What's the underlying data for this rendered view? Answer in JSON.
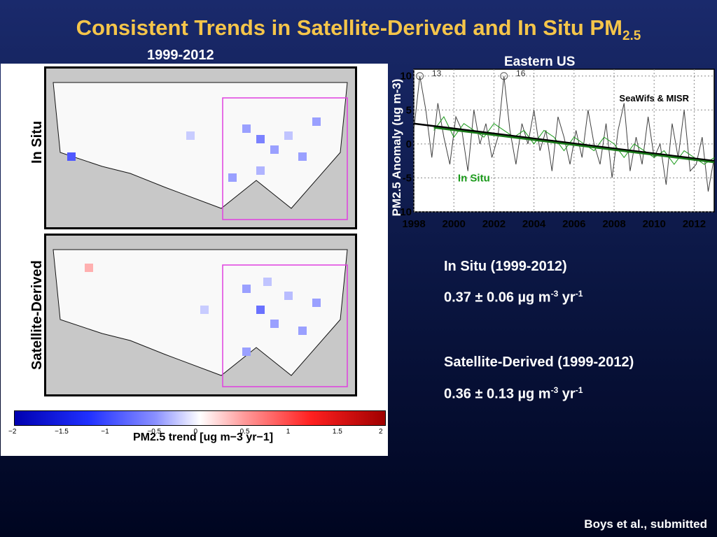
{
  "slide": {
    "title_main": "Consistent Trends in Satellite-Derived and In Situ PM",
    "title_sub": "2.5",
    "period_label": "1999-2012",
    "map_top_label": "In Situ",
    "map_bottom_label": "Satellite-Derived",
    "colorbar_ticks": [
      "−2",
      "−1.5",
      "−1",
      "−0.5",
      "0",
      "0.5",
      "1",
      "1.5",
      "2"
    ],
    "colorbar_label": "PM2.5 trend [ug m−3 yr−1]",
    "citation": "Boys et al., submitted"
  },
  "stats": {
    "in_situ_title": "In Situ (1999-2012)",
    "in_situ_value": "0.37 ± 0.06 µg m",
    "sat_title": "Satellite-Derived (1999-2012)",
    "sat_value": "0.36 ± 0.13 µg m",
    "unit_exp1": "-3",
    "unit_yr": " yr",
    "unit_exp2": "-1"
  },
  "chart_data": {
    "type": "line",
    "title": "Eastern US",
    "ylabel": "PM2.5 Anomaly (ug m-3)",
    "xlim": [
      1998,
      2013
    ],
    "ylim": [
      -10,
      11
    ],
    "x_ticks": [
      1998,
      2000,
      2002,
      2004,
      2006,
      2008,
      2010,
      2012
    ],
    "y_ticks": [
      10,
      5,
      0,
      -5,
      -10
    ],
    "grid": true,
    "annotations": [
      {
        "text": "13",
        "x": 1998.3,
        "y": 10
      },
      {
        "text": "16",
        "x": 2002.5,
        "y": 10
      }
    ],
    "series": [
      {
        "name": "SeaWifs & MISR",
        "color": "#404040",
        "x": [
          1998.0,
          1998.3,
          1998.6,
          1998.9,
          1999.2,
          1999.5,
          1999.8,
          2000.1,
          2000.4,
          2000.7,
          2001.0,
          2001.3,
          2001.6,
          2001.9,
          2002.2,
          2002.5,
          2002.8,
          2003.1,
          2003.4,
          2003.7,
          2004.0,
          2004.3,
          2004.6,
          2004.9,
          2005.2,
          2005.5,
          2005.8,
          2006.1,
          2006.4,
          2006.7,
          2007.0,
          2007.3,
          2007.6,
          2007.9,
          2008.2,
          2008.5,
          2008.8,
          2009.1,
          2009.4,
          2009.7,
          2010.0,
          2010.3,
          2010.6,
          2010.9,
          2011.2,
          2011.5,
          2011.8,
          2012.1,
          2012.4,
          2012.7,
          2013.0
        ],
        "y": [
          2,
          10,
          5,
          -2,
          6,
          1,
          -3,
          4,
          2,
          -4,
          5,
          0,
          3,
          -2,
          1,
          10,
          2,
          -3,
          3,
          0,
          5,
          -1,
          2,
          -4,
          4,
          1,
          -3,
          2,
          -2,
          5,
          0,
          -3,
          3,
          -5,
          2,
          6,
          -4,
          1,
          -3,
          4,
          -2,
          0,
          -6,
          3,
          -2,
          5,
          -4,
          -3,
          1,
          -7,
          -2
        ]
      },
      {
        "name": "In Situ",
        "color": "#1a9a1a",
        "x": [
          1999.0,
          1999.5,
          2000.0,
          2000.5,
          2001.0,
          2001.5,
          2002.0,
          2002.5,
          2003.0,
          2003.5,
          2004.0,
          2004.5,
          2005.0,
          2005.5,
          2006.0,
          2006.5,
          2007.0,
          2007.5,
          2008.0,
          2008.5,
          2009.0,
          2009.5,
          2010.0,
          2010.5,
          2011.0,
          2011.5,
          2012.0,
          2012.5,
          2013.0
        ],
        "y": [
          2,
          4,
          1,
          3,
          2,
          1,
          3,
          2,
          1,
          2,
          0,
          2,
          1,
          -1,
          1,
          0,
          -1,
          1,
          0,
          -2,
          0,
          -1,
          -2,
          -1,
          -3,
          -1,
          -2,
          -3,
          -2
        ]
      },
      {
        "name": "Satellite trend",
        "color": "#000000",
        "x": [
          1998,
          2013
        ],
        "y": [
          3.0,
          -2.5
        ]
      },
      {
        "name": "In Situ trend",
        "color": "#1a7a1a",
        "x": [
          1999,
          2013
        ],
        "y": [
          2.4,
          -2.7
        ]
      }
    ]
  }
}
